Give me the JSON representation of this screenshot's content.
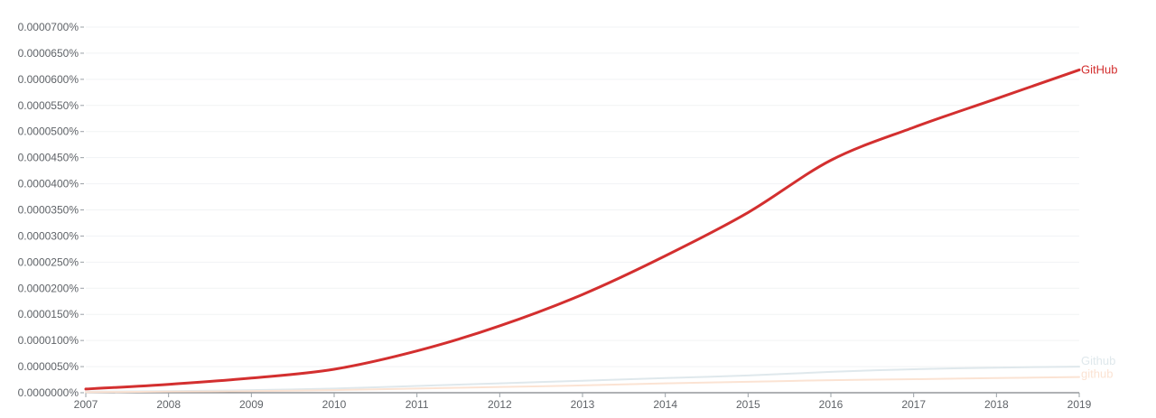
{
  "chart_data": {
    "type": "line",
    "grid": true,
    "legend": "inline-right",
    "xlim": [
      2007,
      2019
    ],
    "ylim": [
      0,
      7e-05
    ],
    "x_ticks": [
      "2007",
      "2008",
      "2009",
      "2010",
      "2011",
      "2012",
      "2013",
      "2014",
      "2015",
      "2016",
      "2017",
      "2018",
      "2019"
    ],
    "y_ticks": [
      {
        "value": 0.0,
        "label": "0.0000000%"
      },
      {
        "value": 5e-06,
        "label": "0.0000050%"
      },
      {
        "value": 1e-05,
        "label": "0.0000100%"
      },
      {
        "value": 1.5e-05,
        "label": "0.0000150%"
      },
      {
        "value": 2e-05,
        "label": "0.0000200%"
      },
      {
        "value": 2.5e-05,
        "label": "0.0000250%"
      },
      {
        "value": 3e-05,
        "label": "0.0000300%"
      },
      {
        "value": 3.5e-05,
        "label": "0.0000350%"
      },
      {
        "value": 4e-05,
        "label": "0.0000400%"
      },
      {
        "value": 4.5e-05,
        "label": "0.0000450%"
      },
      {
        "value": 5e-05,
        "label": "0.0000500%"
      },
      {
        "value": 5.5e-05,
        "label": "0.0000550%"
      },
      {
        "value": 6e-05,
        "label": "0.0000600%"
      },
      {
        "value": 6.5e-05,
        "label": "0.0000650%"
      },
      {
        "value": 7e-05,
        "label": "0.0000700%"
      }
    ],
    "series": [
      {
        "name": "Github",
        "color": "#dfe8ec",
        "x": [
          2007,
          2008,
          2009,
          2010,
          2011,
          2012,
          2013,
          2014,
          2015,
          2016,
          2017,
          2018,
          2019
        ],
        "values": [
          2e-07,
          3e-07,
          5e-07,
          8e-07,
          1.3e-06,
          1.8e-06,
          2.3e-06,
          2.8e-06,
          3.3e-06,
          4e-06,
          4.5e-06,
          4.8e-06,
          5e-06
        ]
      },
      {
        "name": "github",
        "color": "#fbe3d3",
        "x": [
          2007,
          2008,
          2009,
          2010,
          2011,
          2012,
          2013,
          2014,
          2015,
          2016,
          2017,
          2018,
          2019
        ],
        "values": [
          1e-07,
          2e-07,
          3e-07,
          5e-07,
          8e-07,
          1.1e-06,
          1.4e-06,
          1.8e-06,
          2.1e-06,
          2.4e-06,
          2.6e-06,
          2.8e-06,
          3e-06
        ]
      },
      {
        "name": "GitHub",
        "color": "#d32f2f",
        "x": [
          2007,
          2008,
          2009,
          2010,
          2011,
          2012,
          2013,
          2014,
          2015,
          2016,
          2017,
          2018,
          2019
        ],
        "values": [
          7e-07,
          1.6e-06,
          2.8e-06,
          4.5e-06,
          8e-06,
          1.28e-05,
          1.88e-05,
          2.62e-05,
          3.45e-05,
          4.45e-05,
          5.08e-05,
          5.63e-05,
          6.18e-05
        ]
      }
    ]
  }
}
